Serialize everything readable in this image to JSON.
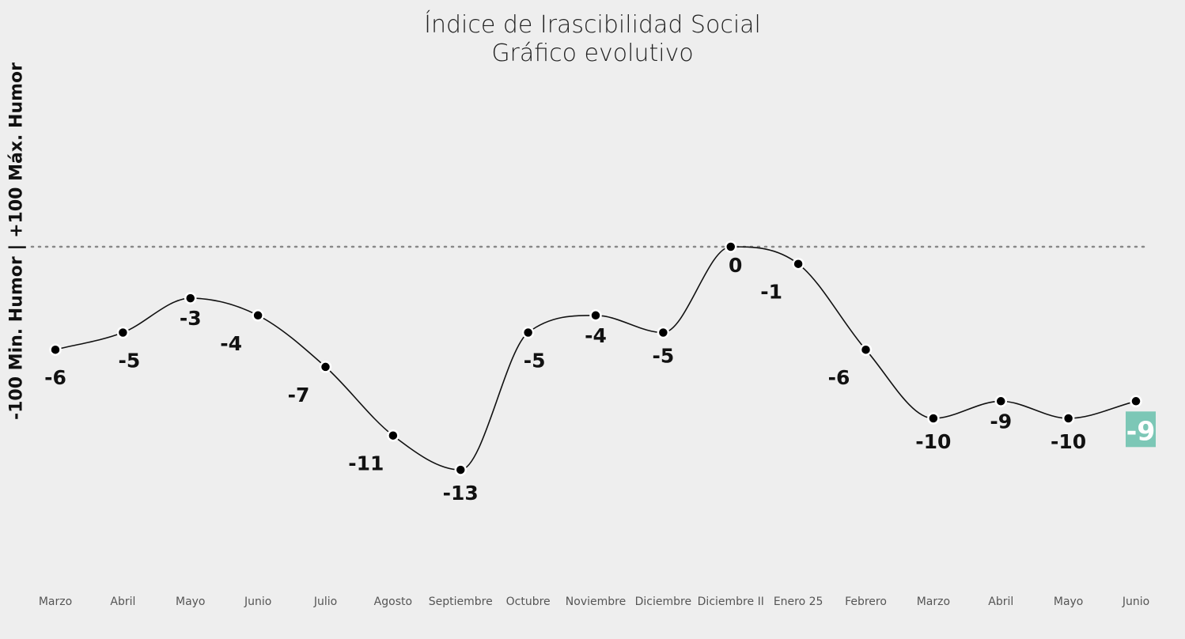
{
  "chart_data": {
    "type": "line",
    "title": "Índice de Irascibilidad Social",
    "subtitle": "Gráfico evolutivo",
    "ylabel": "-100 Min. Humor | +100 Máx. Humor",
    "xlabel": "",
    "categories": [
      "Marzo",
      "Abril",
      "Mayo",
      "Junio",
      "Julio",
      "Agosto",
      "Septiembre",
      "Octubre",
      "Noviembre",
      "Diciembre",
      "Diciembre II",
      "Enero 25",
      "Febrero",
      "Marzo",
      "Abril",
      "Mayo",
      "Junio"
    ],
    "series": [
      {
        "values": [
          -6,
          -5,
          -3,
          -4,
          -7,
          -11,
          -13,
          -5,
          -4,
          -5,
          0,
          -1,
          -6,
          -10,
          -9,
          -10,
          -9
        ]
      }
    ],
    "data_labels": [
      "-6",
      "-5",
      "-3",
      "-4",
      "-7",
      "-11",
      "-13",
      "-5",
      "-4",
      "-5",
      "0",
      "-1",
      "-6",
      "-10",
      "-9",
      "-10",
      "-9"
    ],
    "reference_line": {
      "value": 0,
      "style": "dotted"
    },
    "highlight_last": true,
    "grid": false,
    "legend": "none",
    "colors": {
      "line": "#111111",
      "point": "#000000",
      "highlight": "#7cc7b6",
      "background": "#eeeeee"
    }
  }
}
